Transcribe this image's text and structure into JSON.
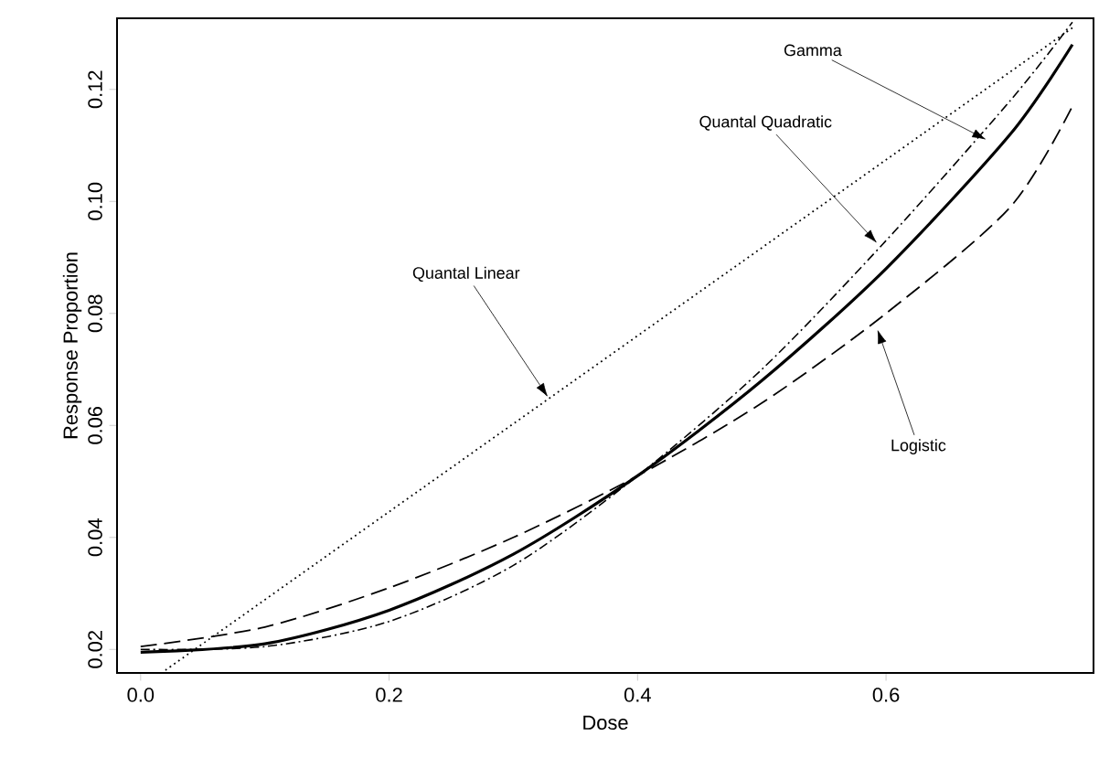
{
  "chart_data": {
    "type": "line",
    "xlabel": "Dose",
    "ylabel": "Response Proportion",
    "xlim": [
      -0.019,
      0.767
    ],
    "ylim": [
      0.0158,
      0.1327
    ],
    "xticks": [
      {
        "value": 0.0,
        "label": "0.0"
      },
      {
        "value": 0.2,
        "label": "0.2"
      },
      {
        "value": 0.4,
        "label": "0.4"
      },
      {
        "value": 0.6,
        "label": "0.6"
      }
    ],
    "yticks": [
      {
        "value": 0.02,
        "label": "0.02"
      },
      {
        "value": 0.04,
        "label": "0.04"
      },
      {
        "value": 0.06,
        "label": "0.06"
      },
      {
        "value": 0.08,
        "label": "0.08"
      },
      {
        "value": 0.1,
        "label": "0.10"
      },
      {
        "value": 0.12,
        "label": "0.12"
      }
    ],
    "grid": false,
    "marker": "none",
    "series": [
      {
        "color": "#000000",
        "line_style": "dotted",
        "x": [
          0.02,
          0.75
        ],
        "values": [
          0.0163,
          0.131
        ]
      },
      {
        "color": "#000000",
        "line_style": "solid",
        "x": [
          0,
          0.1,
          0.2,
          0.3,
          0.4,
          0.5,
          0.6,
          0.7,
          0.75
        ],
        "values": [
          0.0195,
          0.021,
          0.027,
          0.037,
          0.051,
          0.068,
          0.088,
          0.112,
          0.128
        ]
      },
      {
        "color": "#000000",
        "line_style": "dashdot",
        "x": [
          0,
          0.1,
          0.2,
          0.3,
          0.4,
          0.5,
          0.6,
          0.7,
          0.75
        ],
        "values": [
          0.02,
          0.0205,
          0.025,
          0.035,
          0.051,
          0.07,
          0.093,
          0.118,
          0.132
        ]
      },
      {
        "color": "#000000",
        "line_style": "dashed",
        "x": [
          0,
          0.1,
          0.2,
          0.3,
          0.4,
          0.5,
          0.6,
          0.7,
          0.75
        ],
        "values": [
          0.0205,
          0.024,
          0.031,
          0.04,
          0.051,
          0.064,
          0.08,
          0.099,
          0.117
        ]
      }
    ],
    "annotations": [
      {
        "text": "Gamma",
        "x": 0.681,
        "y": 0.111
      },
      {
        "text": "Quantal Quadratic",
        "x": 0.593,
        "y": 0.0925
      },
      {
        "text": "Quantal Linear",
        "x": 0.328,
        "y": 0.065
      },
      {
        "text": "Logistic",
        "x": 0.593,
        "y": 0.0772
      }
    ]
  }
}
